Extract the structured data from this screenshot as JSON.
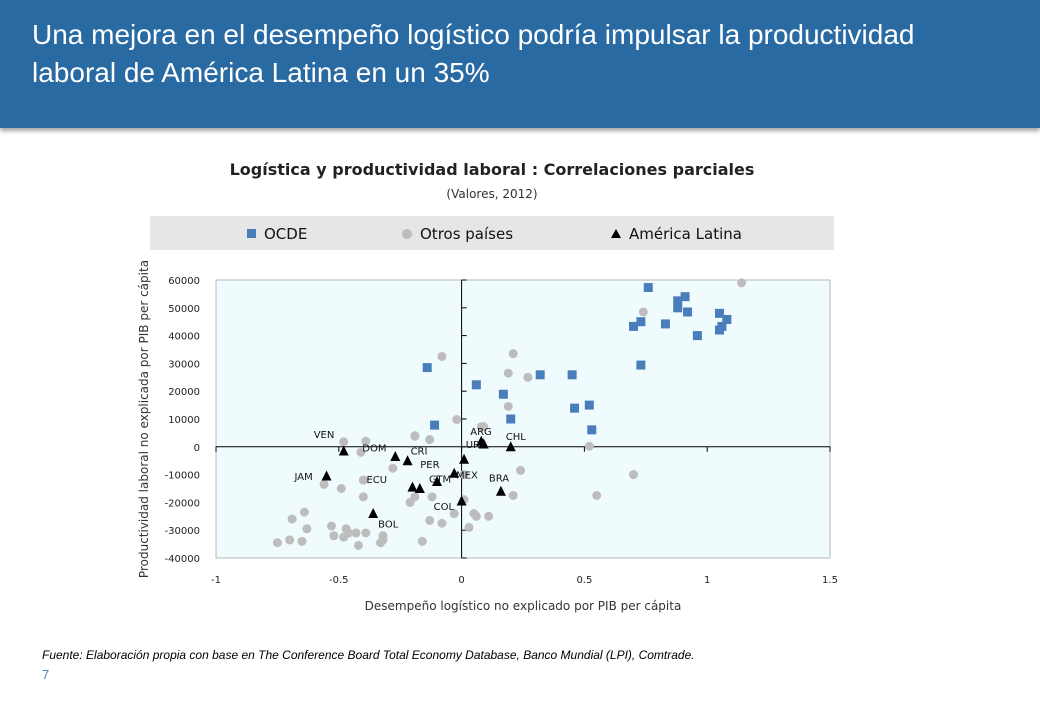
{
  "slide": {
    "title": "Una mejora en el desempeño logístico podría impulsar la productividad laboral de América Latina en un 35%",
    "footnote": "Fuente: Elaboración propia con base en The Conference Board Total Economy Database, Banco Mundial (LPI), Comtrade.",
    "page_number": "7"
  },
  "colors": {
    "header": "#2a6aa3",
    "ocde": "#4a7ebb",
    "otros": "#bdbdbd",
    "america_latina": "#000000",
    "plot_bg": "#f0fbfe"
  },
  "chart_data": {
    "type": "scatter",
    "title": "Logística y productividad laboral : Correlaciones parciales",
    "subtitle": "(Valores, 2012)",
    "xlabel": "Desempeño logístico no explicado por PIB per cápita",
    "ylabel": "Productividad laboral no explicada por PIB per cápita",
    "xlim": [
      -1,
      1.5
    ],
    "ylim": [
      -40000,
      60000
    ],
    "x_ticks": [
      -1,
      -0.5,
      0,
      0.5,
      1,
      1.5
    ],
    "x_tick_labels": [
      "-1",
      "-0.5",
      "0",
      "0.5",
      "1",
      "1.5"
    ],
    "y_ticks": [
      -40000,
      -30000,
      -20000,
      -10000,
      0,
      10000,
      20000,
      30000,
      40000,
      50000,
      60000
    ],
    "y_tick_labels": [
      "-40000",
      "-30000",
      "-20000",
      "-10000",
      "0",
      "10000",
      "20000",
      "30000",
      "40000",
      "50000",
      "60000"
    ],
    "grid": false,
    "legend_position": "top",
    "series": [
      {
        "name": "OCDE",
        "marker": "square",
        "color": "#4a7ebb",
        "points": [
          [
            0.76,
            57300
          ],
          [
            0.91,
            54000
          ],
          [
            0.88,
            52500
          ],
          [
            0.92,
            48500
          ],
          [
            0.88,
            50000
          ],
          [
            1.05,
            48000
          ],
          [
            1.08,
            45800
          ],
          [
            0.73,
            45000
          ],
          [
            0.83,
            44200
          ],
          [
            0.7,
            43300
          ],
          [
            1.06,
            43300
          ],
          [
            1.05,
            42000
          ],
          [
            0.96,
            40000
          ],
          [
            0.73,
            29400
          ],
          [
            0.32,
            25900
          ],
          [
            0.45,
            25900
          ],
          [
            0.06,
            22300
          ],
          [
            0.17,
            18900
          ],
          [
            0.52,
            15000
          ],
          [
            0.46,
            13900
          ],
          [
            0.2,
            10000
          ],
          [
            -0.11,
            7800
          ],
          [
            0.53,
            6100
          ],
          [
            -0.14,
            28500
          ]
        ]
      },
      {
        "name": "Otros países",
        "marker": "circle",
        "color": "#bdbdbd",
        "points": [
          [
            1.14,
            59000
          ],
          [
            0.74,
            48500
          ],
          [
            -0.08,
            32500
          ],
          [
            0.21,
            33500
          ],
          [
            0.19,
            26500
          ],
          [
            0.27,
            25000
          ],
          [
            0.19,
            14500
          ],
          [
            -0.02,
            9800
          ],
          [
            0.08,
            7200
          ],
          [
            -0.48,
            1800
          ],
          [
            -0.39,
            2000
          ],
          [
            -0.19,
            4000
          ],
          [
            -0.41,
            -2000
          ],
          [
            -0.28,
            -7700
          ],
          [
            -0.56,
            -13500
          ],
          [
            -0.49,
            -15000
          ],
          [
            -0.4,
            -12000
          ],
          [
            -0.4,
            -18000
          ],
          [
            -0.19,
            -18000
          ],
          [
            -0.21,
            -20000
          ],
          [
            -0.12,
            -18000
          ],
          [
            0.01,
            -10000
          ],
          [
            0.01,
            -19000
          ],
          [
            0.24,
            -8500
          ],
          [
            0.21,
            -17500
          ],
          [
            0.52,
            200
          ],
          [
            0.7,
            -10000
          ],
          [
            0.55,
            -17500
          ],
          [
            -0.03,
            -24000
          ],
          [
            0.05,
            -24000
          ],
          [
            0.06,
            -25000
          ],
          [
            0.11,
            -25000
          ],
          [
            -0.13,
            -26500
          ],
          [
            -0.08,
            -27500
          ],
          [
            0.03,
            -29000
          ],
          [
            -0.69,
            -26000
          ],
          [
            -0.64,
            -23500
          ],
          [
            -0.63,
            -29500
          ],
          [
            -0.53,
            -28500
          ],
          [
            -0.47,
            -29500
          ],
          [
            -0.46,
            -31000
          ],
          [
            -0.43,
            -31000
          ],
          [
            -0.39,
            -31000
          ],
          [
            -0.52,
            -32000
          ],
          [
            -0.48,
            -32500
          ],
          [
            -0.32,
            -32000
          ],
          [
            -0.7,
            -33500
          ],
          [
            -0.65,
            -34000
          ],
          [
            -0.75,
            -34500
          ],
          [
            -0.32,
            -33500
          ],
          [
            -0.33,
            -34500
          ],
          [
            -0.16,
            -34000
          ],
          [
            -0.42,
            -35500
          ],
          [
            0.09,
            7200
          ],
          [
            -0.19,
            3800
          ],
          [
            -0.13,
            2600
          ]
        ]
      },
      {
        "name": "América Latina",
        "marker": "triangle",
        "color": "#000000",
        "points": [
          {
            "label": "ARG",
            "x": 0.08,
            "y": 2000
          },
          {
            "label": "CHL",
            "x": 0.2,
            "y": 0
          },
          {
            "label": "URY",
            "x": 0.09,
            "y": 1000
          },
          {
            "label": "MEX",
            "x": 0.01,
            "y": -4500
          },
          {
            "label": "VEN",
            "x": -0.48,
            "y": -1500
          },
          {
            "label": "DOM",
            "x": -0.27,
            "y": -3500
          },
          {
            "label": "CRI",
            "x": -0.22,
            "y": -5000
          },
          {
            "label": "PER",
            "x": -0.03,
            "y": -9500
          },
          {
            "label": "JAM",
            "x": -0.55,
            "y": -10500
          },
          {
            "label": "GTM",
            "x": -0.1,
            "y": -12500
          },
          {
            "label": "ECU",
            "x": -0.2,
            "y": -14500
          },
          {
            "label": "ECU",
            "x": -0.17,
            "y": -15000
          },
          {
            "label": "COL",
            "x": 0.0,
            "y": -19500
          },
          {
            "label": "BRA",
            "x": 0.16,
            "y": -16000
          },
          {
            "label": "BOL",
            "x": -0.36,
            "y": -24000
          }
        ]
      }
    ],
    "point_labels": [
      "VEN",
      "JAM",
      "DOM",
      "CRI",
      "GTM",
      "PER",
      "ECU",
      "COL",
      "BOL",
      "URY",
      "ARG",
      "CHL",
      "MEX",
      "BRA"
    ]
  }
}
